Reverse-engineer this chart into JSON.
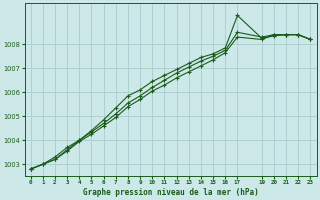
{
  "title": "Graphe pression niveau de la mer (hPa)",
  "background_color": "#cce8e8",
  "grid_color": "#aacccc",
  "line_color": "#1a5c1a",
  "xlim": [
    -0.5,
    23.5
  ],
  "ylim": [
    1002.5,
    1009.7
  ],
  "yticks": [
    1003,
    1004,
    1005,
    1006,
    1007,
    1008
  ],
  "xticks": [
    0,
    1,
    2,
    3,
    4,
    5,
    6,
    7,
    8,
    9,
    10,
    11,
    12,
    13,
    14,
    15,
    16,
    17,
    19,
    20,
    21,
    22,
    23
  ],
  "xtick_labels": [
    "0",
    "1",
    "2",
    "3",
    "4",
    "5",
    "6",
    "7",
    "8",
    "9",
    "10",
    "11",
    "12",
    "13",
    "14",
    "15",
    "16",
    "17",
    "19",
    "20",
    "21",
    "22",
    "23"
  ],
  "series1_x": [
    0,
    1,
    2,
    3,
    4,
    5,
    6,
    7,
    8,
    9,
    10,
    11,
    12,
    13,
    14,
    15,
    16,
    17,
    19,
    20,
    21,
    22,
    23
  ],
  "series1_y": [
    1002.8,
    1003.0,
    1003.3,
    1003.7,
    1004.0,
    1004.4,
    1004.85,
    1005.35,
    1005.85,
    1006.1,
    1006.45,
    1006.7,
    1006.95,
    1007.2,
    1007.45,
    1007.6,
    1007.85,
    1009.2,
    1008.25,
    1008.35,
    1008.4,
    1008.4,
    1008.2
  ],
  "series2_x": [
    0,
    1,
    2,
    3,
    4,
    5,
    6,
    7,
    8,
    9,
    10,
    11,
    12,
    13,
    14,
    15,
    16,
    17,
    19,
    20,
    21,
    22,
    23
  ],
  "series2_y": [
    1002.8,
    1003.0,
    1003.2,
    1003.6,
    1004.0,
    1004.35,
    1004.7,
    1005.1,
    1005.55,
    1005.85,
    1006.2,
    1006.5,
    1006.8,
    1007.05,
    1007.3,
    1007.5,
    1007.75,
    1008.5,
    1008.3,
    1008.4,
    1008.4,
    1008.4,
    1008.2
  ],
  "series3_x": [
    0,
    1,
    2,
    3,
    4,
    5,
    6,
    7,
    8,
    9,
    10,
    11,
    12,
    13,
    14,
    15,
    16,
    17,
    19,
    20,
    21,
    22,
    23
  ],
  "series3_y": [
    1002.8,
    1003.0,
    1003.2,
    1003.55,
    1003.95,
    1004.25,
    1004.6,
    1004.95,
    1005.4,
    1005.7,
    1006.05,
    1006.3,
    1006.6,
    1006.85,
    1007.1,
    1007.35,
    1007.65,
    1008.3,
    1008.2,
    1008.4,
    1008.4,
    1008.4,
    1008.2
  ]
}
